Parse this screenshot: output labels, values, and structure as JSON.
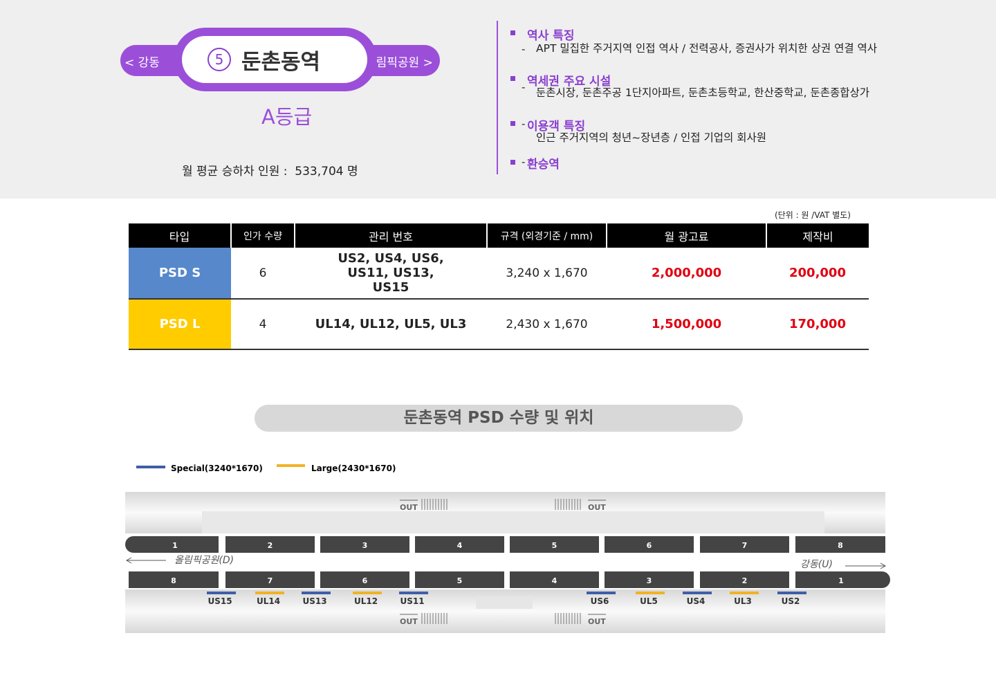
{
  "header": {
    "prev_station": "< 강동",
    "station_number": "5",
    "station_name": "둔촌동역",
    "next_station": "올림픽공원 >",
    "grade": "A등급",
    "ridership_label": "월 평균 승하차 인원 :",
    "ridership": "533,704 명"
  },
  "features": [
    {
      "title": "역사 특징",
      "detail": "APT  밀집한 주거지역 인접 역사 / 전력공사, 증권사가 위치한 상권 연결 역사"
    },
    {
      "title": "역세권 주요 시설",
      "detail": "둔촌시장,  둔촌주공 1단지아파트, 둔촌초등학교, 한산중학교, 둔촌종합상가"
    },
    {
      "title": "이용객 특징",
      "detail": "인근 주거지역의 청년~장년층 / 인접 기업의 회사원"
    },
    {
      "title": "환승역"
    }
  ],
  "table": {
    "unit_note": "(단위 : 원 /VAT 별도)",
    "headers": [
      "타입",
      "인가 수량",
      "관리 번호",
      "규격 (외경기준 / mm)",
      "월 광고료",
      "제작비"
    ],
    "rows": [
      [
        "PSD S",
        "6",
        "US2, US4, US6, US11, US13, US15",
        "3,240 x 1,670",
        "2,000,000",
        "200,000"
      ],
      [
        "PSD L",
        "4",
        "UL14, UL12, UL5, UL3",
        "2,430 x 1,670",
        "1,500,000",
        "170,000"
      ]
    ]
  },
  "section_title": "둔촌동역 PSD 수량 및 위치",
  "legend": [
    "Special(3240*1670)",
    "Large(2430*1670)"
  ],
  "diagram": {
    "exit_label": "OUT",
    "top_cars": [
      "1",
      "2",
      "3",
      "4",
      "5",
      "6",
      "7",
      "8"
    ],
    "bottom_cars": [
      "8",
      "7",
      "6",
      "5",
      "4",
      "3",
      "2",
      "1"
    ],
    "direction_left": "올림픽공원(D)",
    "direction_right": "강동(U)",
    "psd": [
      "US15",
      "UL14",
      "US13",
      "UL12",
      "US11",
      "US6",
      "UL5",
      "US4",
      "UL3",
      "US2"
    ]
  }
}
